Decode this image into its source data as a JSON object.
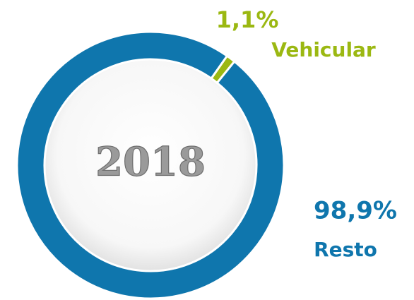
{
  "chart_data": {
    "type": "donut",
    "center_label": "2018",
    "categories": [
      "Vehicular",
      "Resto"
    ],
    "values": [
      1.1,
      98.9
    ],
    "value_labels": [
      "1,1%",
      "98,9%"
    ],
    "colors": [
      "#9bb812",
      "#0f76ad"
    ]
  }
}
